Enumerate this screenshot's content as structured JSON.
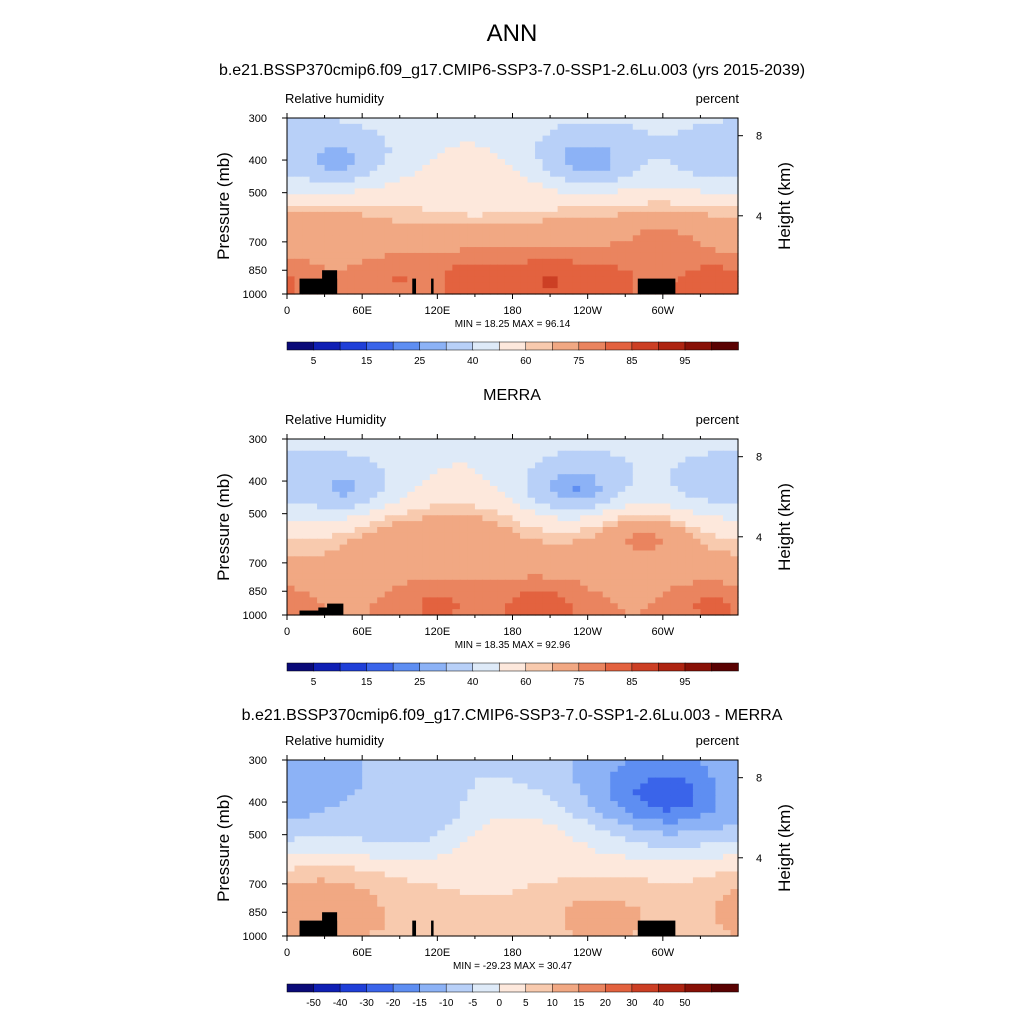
{
  "main_title": "ANN",
  "colors": {
    "abs_scale": [
      "#0a0a78",
      "#0f1fb4",
      "#1f3fd8",
      "#3a64ea",
      "#5e8ef2",
      "#8cb2f6",
      "#b8d0f8",
      "#deeaf8",
      "#fde8dc",
      "#f8caae",
      "#f1a883",
      "#ea845f",
      "#e3623f",
      "#cc3f24",
      "#ae2411",
      "#881006",
      "#5a0202"
    ],
    "diff_scale": [
      "#0a0a78",
      "#0f1fb4",
      "#1f3fd8",
      "#3a64ea",
      "#5e8ef2",
      "#8cb2f6",
      "#b8d0f8",
      "#deeaf8",
      "#fde8dc",
      "#f8caae",
      "#f1a883",
      "#ea845f",
      "#e3623f",
      "#cc3f24",
      "#ae2411",
      "#881006",
      "#5a0202"
    ],
    "terrain": "#000000"
  },
  "panels": [
    {
      "title": "b.e21.BSSP370cmip6.f09_g17.CMIP6-SSP3-7.0-SSP1-2.6Lu.003 (yrs 2015-2039)",
      "variable": "Relative humidity",
      "units": "percent",
      "stats": "MIN =  18.25  MAX =  96.14",
      "colorbar_labels": [
        "5",
        "15",
        "25",
        "40",
        "60",
        "75",
        "85",
        "95"
      ]
    },
    {
      "title": "MERRA",
      "variable": "Relative Humidity",
      "units": "percent",
      "stats": "MIN =  18.35  MAX =  92.96",
      "colorbar_labels": [
        "5",
        "15",
        "25",
        "40",
        "60",
        "75",
        "85",
        "95"
      ]
    },
    {
      "title": "b.e21.BSSP370cmip6.f09_g17.CMIP6-SSP3-7.0-SSP1-2.6Lu.003 - MERRA",
      "variable": "Relative humidity",
      "units": "percent",
      "stats": "MIN = -29.23  MAX =  30.47",
      "colorbar_labels": [
        "-50",
        "-40",
        "-30",
        "-20",
        "-15",
        "-10",
        "-5",
        "0",
        "5",
        "10",
        "15",
        "20",
        "30",
        "40",
        "50"
      ]
    }
  ],
  "chart_data": [
    {
      "type": "heatmap",
      "title": "b.e21.BSSP370cmip6.f09_g17.CMIP6-SSP3-7.0-SSP1-2.6Lu.003 (yrs 2015-2039)",
      "ylabel": "Pressure (mb)",
      "y2label": "Height (km)",
      "x_ticks": [
        "0",
        "60E",
        "120E",
        "180",
        "120W",
        "60W"
      ],
      "y_ticks": [
        "300",
        "400",
        "500",
        "700",
        "850",
        "1000"
      ],
      "y2_ticks": [
        "8",
        "4"
      ],
      "min": 18.25,
      "max": 96.14,
      "levels": [
        5,
        10,
        15,
        20,
        25,
        30,
        40,
        50,
        60,
        65,
        75,
        80,
        85,
        90,
        95
      ],
      "features": [
        {
          "lon": 90,
          "p": 900,
          "value": 85
        },
        {
          "lon": 150,
          "p": 900,
          "value": 88
        },
        {
          "lon": 210,
          "p": 920,
          "value": 92
        },
        {
          "lon": 260,
          "p": 900,
          "value": 86
        },
        {
          "lon": 300,
          "p": 700,
          "value": 82
        },
        {
          "lon": 340,
          "p": 920,
          "value": 90
        },
        {
          "lon": 240,
          "p": 400,
          "value": 18
        },
        {
          "lon": 40,
          "p": 400,
          "value": 20
        },
        {
          "lon": 345,
          "p": 400,
          "value": 28
        },
        {
          "lon": 150,
          "p": 500,
          "value": 55
        },
        {
          "lon": 30,
          "p": 650,
          "value": 75
        }
      ]
    },
    {
      "type": "heatmap",
      "title": "MERRA",
      "ylabel": "Pressure (mb)",
      "y2label": "Height (km)",
      "x_ticks": [
        "0",
        "60E",
        "120E",
        "180",
        "120W",
        "60W"
      ],
      "y_ticks": [
        "300",
        "400",
        "500",
        "700",
        "850",
        "1000"
      ],
      "y2_ticks": [
        "8",
        "4"
      ],
      "min": 18.35,
      "max": 92.96,
      "levels": [
        5,
        10,
        15,
        20,
        25,
        30,
        40,
        50,
        60,
        65,
        75,
        80,
        85,
        90,
        95
      ],
      "features": [
        {
          "lon": 120,
          "p": 930,
          "value": 86
        },
        {
          "lon": 200,
          "p": 940,
          "value": 88
        },
        {
          "lon": 340,
          "p": 940,
          "value": 86
        },
        {
          "lon": 95,
          "p": 620,
          "value": 78
        },
        {
          "lon": 140,
          "p": 620,
          "value": 76
        },
        {
          "lon": 285,
          "p": 600,
          "value": 82
        },
        {
          "lon": 230,
          "p": 420,
          "value": 18
        },
        {
          "lon": 45,
          "p": 420,
          "value": 22
        },
        {
          "lon": 340,
          "p": 410,
          "value": 30
        }
      ]
    },
    {
      "type": "heatmap",
      "title": "b.e21.BSSP370cmip6.f09_g17.CMIP6-SSP3-7.0-SSP1-2.6Lu.003 - MERRA",
      "ylabel": "Pressure (mb)",
      "y2label": "Height (km)",
      "x_ticks": [
        "0",
        "60E",
        "120E",
        "180",
        "120W",
        "60W"
      ],
      "y_ticks": [
        "300",
        "400",
        "500",
        "700",
        "850",
        "1000"
      ],
      "y2_ticks": [
        "8",
        "4"
      ],
      "min": -29.23,
      "max": 30.47,
      "levels": [
        -50,
        -40,
        -30,
        -20,
        -15,
        -10,
        -5,
        0,
        5,
        10,
        15,
        20,
        30,
        40,
        50
      ],
      "features": [
        {
          "lon": 305,
          "p": 380,
          "value": -28
        },
        {
          "lon": 10,
          "p": 350,
          "value": -15
        },
        {
          "lon": 95,
          "p": 450,
          "value": -12
        },
        {
          "lon": 180,
          "p": 550,
          "value": 6
        },
        {
          "lon": 250,
          "p": 870,
          "value": 14
        },
        {
          "lon": 60,
          "p": 880,
          "value": 12
        },
        {
          "lon": 30,
          "p": 800,
          "value": 18
        }
      ]
    }
  ]
}
